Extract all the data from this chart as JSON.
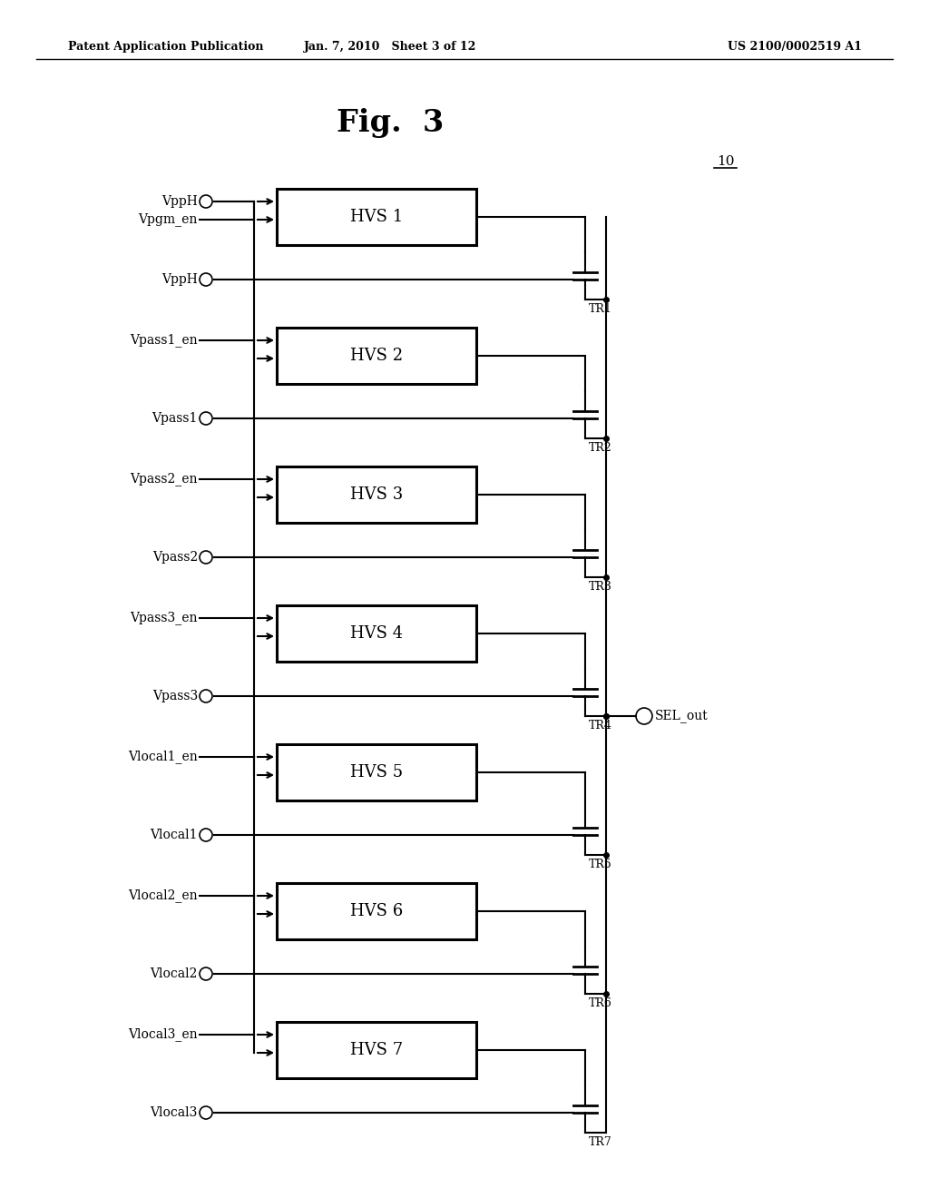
{
  "header_left": "Patent Application Publication",
  "header_center": "Jan. 7, 2010   Sheet 3 of 12",
  "header_right": "US 2100/0002519 A1",
  "fig_label": "Fig.  3",
  "label_10": "10",
  "background_color": "#ffffff",
  "blocks": [
    {
      "hvs_label": "HVS 1",
      "tr_label": "TR1",
      "en_label": "VppH",
      "en_bubble": true,
      "en2_label": "Vpgm_en",
      "en2_bubble": false,
      "gate_label": "VppH",
      "gate_bubble": true
    },
    {
      "hvs_label": "HVS 2",
      "tr_label": "TR2",
      "en_label": "Vpass1_en",
      "en_bubble": false,
      "en2_label": null,
      "en2_bubble": false,
      "gate_label": "Vpass1",
      "gate_bubble": true
    },
    {
      "hvs_label": "HVS 3",
      "tr_label": "TR3",
      "en_label": "Vpass2_en",
      "en_bubble": false,
      "en2_label": null,
      "en2_bubble": false,
      "gate_label": "Vpass2",
      "gate_bubble": true
    },
    {
      "hvs_label": "HVS 4",
      "tr_label": "TR4",
      "en_label": "Vpass3_en",
      "en_bubble": false,
      "en2_label": null,
      "en2_bubble": false,
      "gate_label": "Vpass3",
      "gate_bubble": true
    },
    {
      "hvs_label": "HVS 5",
      "tr_label": "TR5",
      "en_label": "Vlocal1_en",
      "en_bubble": false,
      "en2_label": null,
      "en2_bubble": false,
      "gate_label": "Vlocal1",
      "gate_bubble": true
    },
    {
      "hvs_label": "HVS 6",
      "tr_label": "TR6",
      "en_label": "Vlocal2_en",
      "en_bubble": false,
      "en2_label": null,
      "en2_bubble": false,
      "gate_label": "Vlocal2",
      "gate_bubble": true
    },
    {
      "hvs_label": "HVS 7",
      "tr_label": "TR7",
      "en_label": "Vlocal3_en",
      "en_bubble": false,
      "en2_label": null,
      "en2_bubble": false,
      "gate_label": "Vlocal3",
      "gate_bubble": true
    }
  ],
  "sel_out_label": "SEL_out",
  "sel_out_block_idx": 3
}
